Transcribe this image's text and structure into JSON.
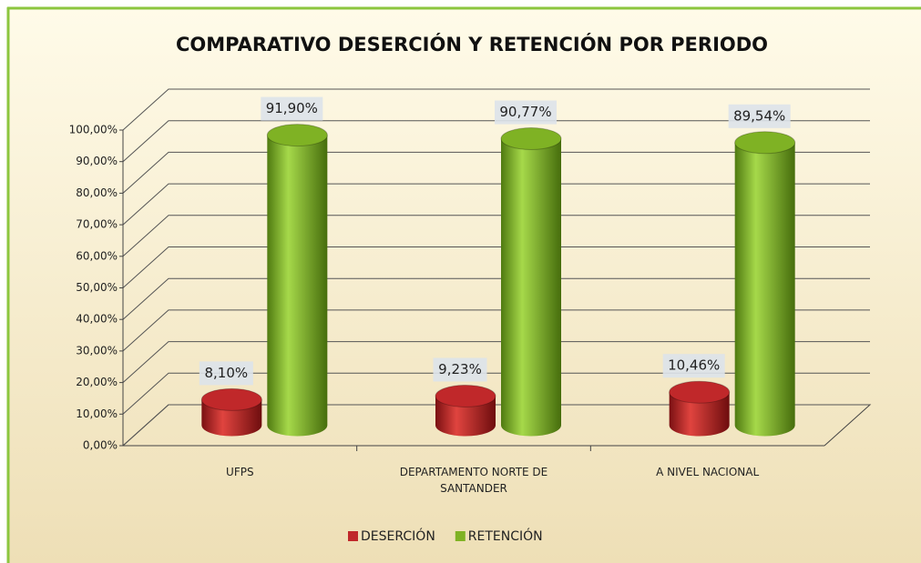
{
  "chart_data": {
    "type": "bar3d",
    "title": "COMPARATIVO DESERCIÓN Y RETENCIÓN POR PERIODO",
    "categories": [
      "UFPS",
      "DEPARTAMENTO NORTE DE SANTANDER",
      "A NIVEL NACIONAL"
    ],
    "series": [
      {
        "name": "DESERCIÓN",
        "color": "#c0282a",
        "values": [
          8.1,
          9.23,
          10.46
        ],
        "value_labels": [
          "8,10%",
          "9,23%",
          "10,46%"
        ]
      },
      {
        "name": "RETENCIÓN",
        "color": "#7fb224",
        "values": [
          91.9,
          90.77,
          89.54
        ],
        "value_labels": [
          "91,90%",
          "90,77%",
          "89,54%"
        ]
      }
    ],
    "ylim": [
      0,
      100
    ],
    "yticks": [
      {
        "value": 0,
        "label": "0,00%"
      },
      {
        "value": 10,
        "label": "10,00%"
      },
      {
        "value": 20,
        "label": "20,00%"
      },
      {
        "value": 30,
        "label": "30,00%"
      },
      {
        "value": 40,
        "label": "40,00%"
      },
      {
        "value": 50,
        "label": "50,00%"
      },
      {
        "value": 60,
        "label": "60,00%"
      },
      {
        "value": 70,
        "label": "70,00%"
      },
      {
        "value": 80,
        "label": "80,00%"
      },
      {
        "value": 90,
        "label": "90,00%"
      },
      {
        "value": 100,
        "label": "100,00%"
      }
    ],
    "grid": true,
    "legend": "bottom"
  }
}
